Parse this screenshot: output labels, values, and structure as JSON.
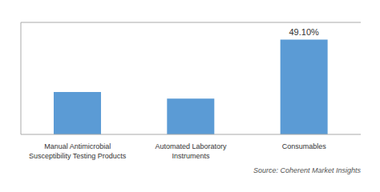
{
  "chart_data": {
    "type": "bar",
    "categories": [
      "Manual Antimicrobial\nSusceptibility Testing Products",
      "Automated Laboratory\nInstruments",
      "Consumables"
    ],
    "values": [
      22.0,
      18.5,
      49.1
    ],
    "value_labels": [
      null,
      null,
      "49.10%"
    ],
    "data_labels": true,
    "color": "#5B9BD5",
    "ylim": [
      0,
      58
    ],
    "yticks": [],
    "grid": false,
    "tick_labels": "x",
    "annotations": [
      "Source: Coherent Market Insights"
    ]
  }
}
